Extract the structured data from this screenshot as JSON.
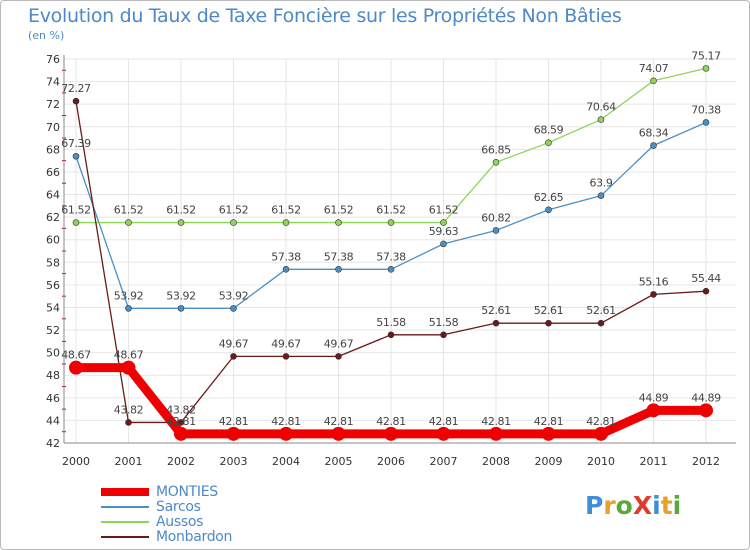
{
  "title": "Evolution du Taux de Taxe Foncière sur les Propriétés Non Bâties",
  "subtitle": "(en %)",
  "logo": {
    "text": "ProXiti",
    "letters": [
      "P",
      "r",
      "o",
      "X",
      "i",
      "t",
      "i"
    ],
    "colors": [
      "#3d8fd6",
      "#e8a02a",
      "#5aa83a",
      "#e03c2c",
      "#3d8fd6",
      "#e8a02a",
      "#5aa83a"
    ]
  },
  "chart_data": {
    "type": "line",
    "title": "Evolution du Taux de Taxe Foncière sur les Propriétés Non Bâties",
    "ylabel": "(en %)",
    "xlabel": "",
    "ylim": [
      42,
      76
    ],
    "yticks": [
      42,
      44,
      46,
      48,
      50,
      52,
      54,
      56,
      58,
      60,
      62,
      64,
      66,
      68,
      70,
      72,
      74,
      76
    ],
    "x": [
      "2000",
      "2001",
      "2002",
      "2003",
      "2004",
      "2005",
      "2006",
      "2007",
      "2008",
      "2009",
      "2010",
      "2011",
      "2012"
    ],
    "grid": true,
    "legend_position": "bottom-left",
    "series": [
      {
        "name": "MONTIES",
        "color": "#ee0000",
        "width": 9,
        "dot": 7,
        "values": [
          48.67,
          48.67,
          42.81,
          42.81,
          42.81,
          42.81,
          42.81,
          42.81,
          42.81,
          42.81,
          42.81,
          44.89,
          44.89
        ],
        "labels": [
          "48.67",
          "48.67",
          "42.81",
          "42.81",
          "42.81",
          "42.81",
          "42.81",
          "42.81",
          "42.81",
          "42.81",
          "42.81",
          "44.89",
          "44.89"
        ]
      },
      {
        "name": "Sarcos",
        "color": "#4a90c8",
        "width": 1.3,
        "dot": 3,
        "values": [
          67.39,
          53.92,
          53.92,
          53.92,
          57.38,
          57.38,
          57.38,
          59.63,
          60.82,
          62.65,
          63.9,
          68.34,
          70.38
        ],
        "labels": [
          "67.39",
          "53.92",
          "53.92",
          "53.92",
          "57.38",
          "57.38",
          "57.38",
          "59.63",
          "60.82",
          "62.65",
          "63.9",
          "68.34",
          "70.38"
        ]
      },
      {
        "name": "Aussos",
        "color": "#8fd45a",
        "width": 1.3,
        "dot": 3,
        "values": [
          61.52,
          61.52,
          61.52,
          61.52,
          61.52,
          61.52,
          61.52,
          61.52,
          66.85,
          68.59,
          70.64,
          74.07,
          75.17
        ],
        "labels": [
          "61.52",
          "61.52",
          "61.52",
          "61.52",
          "61.52",
          "61.52",
          "61.52",
          "61.52",
          "66.85",
          "68.59",
          "70.64",
          "74.07",
          "75.17"
        ]
      },
      {
        "name": "Monbardon",
        "color": "#6b1a1a",
        "width": 1.3,
        "dot": 3,
        "values": [
          72.27,
          43.82,
          43.82,
          49.67,
          49.67,
          49.67,
          51.58,
          51.58,
          52.61,
          52.61,
          52.61,
          55.16,
          55.44
        ],
        "labels": [
          "72.27",
          "43.82",
          "43.82",
          "49.67",
          "49.67",
          "49.67",
          "51.58",
          "51.58",
          "52.61",
          "52.61",
          "52.61",
          "55.16",
          "55.44"
        ]
      }
    ]
  }
}
